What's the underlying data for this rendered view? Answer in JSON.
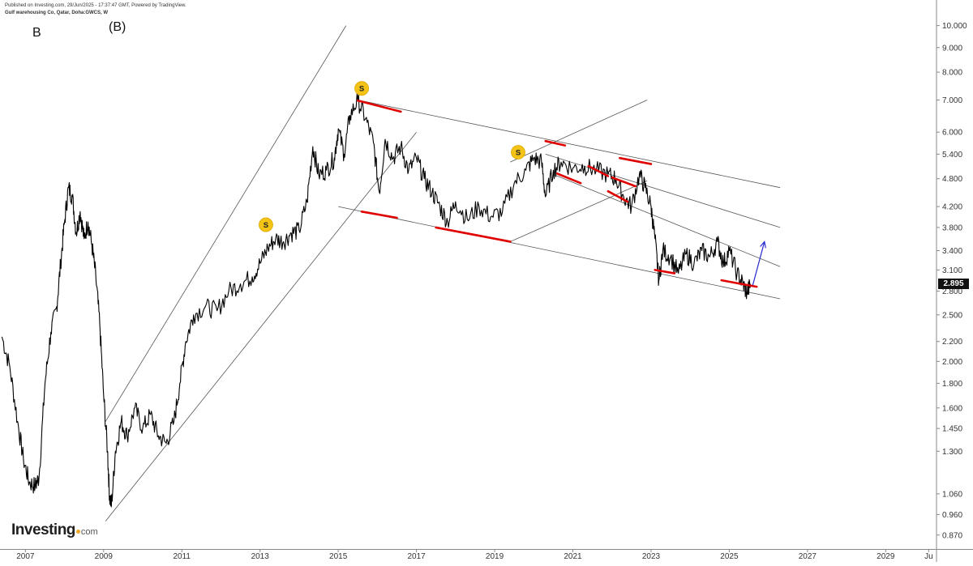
{
  "header": {
    "published": "Published on Investing.com, 29/Jun/2025 - 17:37:47 GMT, Powered by TradingView.",
    "symbol": "Gulf warehousing Co, Qatar, Doha:GWCS, W"
  },
  "labels": {
    "wave_b": "B",
    "wave_b_paren": "(B)"
  },
  "logo": {
    "main": "Investing",
    "suffix": "com"
  },
  "colors": {
    "price": "#000000",
    "trendline": "#555555",
    "touch_marker": "#e00000",
    "target_arrow": "#2a2ad0",
    "signal_badge": "#f3c316",
    "grid": "#ffffff"
  },
  "chart_data": {
    "type": "line",
    "title": "",
    "xlabel": "",
    "ylabel": "",
    "y_scale": "log",
    "ylim": [
      0.82,
      10.3
    ],
    "xlim": [
      2006.35,
      2030.3
    ],
    "y_ticks": [
      "10.000",
      "9.000",
      "8.000",
      "7.000",
      "6.000",
      "5.400",
      "4.800",
      "4.200",
      "3.800",
      "3.400",
      "3.100",
      "2.800",
      "2.500",
      "2.200",
      "2.000",
      "1.800",
      "1.600",
      "1.450",
      "1.300",
      "1.060",
      "0.960",
      "0.870"
    ],
    "x_ticks": [
      "2007",
      "2009",
      "2011",
      "2013",
      "2015",
      "2017",
      "2019",
      "2021",
      "2023",
      "2025",
      "2027",
      "2029",
      "Ju"
    ],
    "last_price": "2.895",
    "series": [
      {
        "points": [
          [
            2006.4,
            2.25
          ],
          [
            2006.6,
            1.95
          ],
          [
            2006.8,
            1.5
          ],
          [
            2006.95,
            1.25
          ],
          [
            2007.1,
            1.12
          ],
          [
            2007.25,
            1.1
          ],
          [
            2007.35,
            1.15
          ],
          [
            2007.5,
            1.8
          ],
          [
            2007.65,
            2.3
          ],
          [
            2007.8,
            2.6
          ],
          [
            2007.9,
            3.2
          ],
          [
            2008.0,
            3.9
          ],
          [
            2008.1,
            4.6
          ],
          [
            2008.2,
            4.4
          ],
          [
            2008.3,
            3.7
          ],
          [
            2008.4,
            4.1
          ],
          [
            2008.5,
            3.6
          ],
          [
            2008.6,
            3.9
          ],
          [
            2008.7,
            3.5
          ],
          [
            2008.8,
            3.0
          ],
          [
            2008.9,
            2.4
          ],
          [
            2009.0,
            1.7
          ],
          [
            2009.1,
            1.3
          ],
          [
            2009.15,
            1.05
          ],
          [
            2009.2,
            1.0
          ],
          [
            2009.3,
            1.3
          ],
          [
            2009.45,
            1.5
          ],
          [
            2009.6,
            1.4
          ],
          [
            2009.8,
            1.6
          ],
          [
            2010.0,
            1.45
          ],
          [
            2010.2,
            1.55
          ],
          [
            2010.4,
            1.4
          ],
          [
            2010.6,
            1.35
          ],
          [
            2010.8,
            1.5
          ],
          [
            2010.95,
            1.8
          ],
          [
            2011.1,
            2.2
          ],
          [
            2011.3,
            2.5
          ],
          [
            2011.6,
            2.6
          ],
          [
            2011.9,
            2.55
          ],
          [
            2012.2,
            2.8
          ],
          [
            2012.5,
            2.9
          ],
          [
            2012.8,
            3.0
          ],
          [
            2013.0,
            3.2
          ],
          [
            2013.2,
            3.45
          ],
          [
            2013.4,
            3.6
          ],
          [
            2013.6,
            3.55
          ],
          [
            2013.8,
            3.7
          ],
          [
            2014.0,
            3.75
          ],
          [
            2014.2,
            4.3
          ],
          [
            2014.35,
            5.6
          ],
          [
            2014.5,
            4.9
          ],
          [
            2014.7,
            5.0
          ],
          [
            2014.9,
            5.3
          ],
          [
            2015.0,
            6.1
          ],
          [
            2015.15,
            5.4
          ],
          [
            2015.3,
            6.5
          ],
          [
            2015.5,
            7.0
          ],
          [
            2015.7,
            6.4
          ],
          [
            2015.9,
            5.7
          ],
          [
            2016.05,
            4.5
          ],
          [
            2016.2,
            5.8
          ],
          [
            2016.4,
            5.3
          ],
          [
            2016.6,
            5.6
          ],
          [
            2016.8,
            5.0
          ],
          [
            2017.0,
            5.3
          ],
          [
            2017.2,
            4.8
          ],
          [
            2017.4,
            4.5
          ],
          [
            2017.6,
            4.2
          ],
          [
            2017.8,
            3.9
          ],
          [
            2018.0,
            4.3
          ],
          [
            2018.3,
            3.95
          ],
          [
            2018.6,
            4.2
          ],
          [
            2018.9,
            4.0
          ],
          [
            2019.2,
            4.1
          ],
          [
            2019.5,
            4.7
          ],
          [
            2019.8,
            5.0
          ],
          [
            2020.0,
            5.3
          ],
          [
            2020.2,
            5.2
          ],
          [
            2020.3,
            4.4
          ],
          [
            2020.5,
            5.0
          ],
          [
            2020.7,
            5.2
          ],
          [
            2021.0,
            5.05
          ],
          [
            2021.3,
            5.1
          ],
          [
            2021.6,
            5.0
          ],
          [
            2021.9,
            4.9
          ],
          [
            2022.1,
            4.8
          ],
          [
            2022.3,
            4.4
          ],
          [
            2022.5,
            4.2
          ],
          [
            2022.7,
            4.9
          ],
          [
            2022.85,
            4.6
          ],
          [
            2023.0,
            4.2
          ],
          [
            2023.1,
            3.6
          ],
          [
            2023.2,
            2.95
          ],
          [
            2023.3,
            3.4
          ],
          [
            2023.5,
            3.3
          ],
          [
            2023.7,
            3.05
          ],
          [
            2023.9,
            3.35
          ],
          [
            2024.1,
            3.2
          ],
          [
            2024.3,
            3.4
          ],
          [
            2024.5,
            3.3
          ],
          [
            2024.7,
            3.55
          ],
          [
            2024.85,
            3.2
          ],
          [
            2025.0,
            3.4
          ],
          [
            2025.2,
            3.05
          ],
          [
            2025.35,
            2.9
          ],
          [
            2025.45,
            2.78
          ],
          [
            2025.55,
            2.895
          ]
        ]
      }
    ],
    "trendlines": [
      {
        "name": "channel-upper",
        "from": [
          2009.05,
          1.5
        ],
        "to": [
          2015.2,
          10.0
        ]
      },
      {
        "name": "channel-lower",
        "from": [
          2009.05,
          0.93
        ],
        "to": [
          2017.0,
          6.0
        ]
      },
      {
        "name": "falling-channel-top",
        "from": [
          2015.5,
          7.0
        ],
        "to": [
          2026.3,
          4.6
        ]
      },
      {
        "name": "falling-channel-bottom",
        "from": [
          2015.0,
          4.2
        ],
        "to": [
          2026.3,
          2.7
        ]
      },
      {
        "name": "inner-falling-upper",
        "from": [
          2020.3,
          5.4
        ],
        "to": [
          2026.3,
          3.8
        ]
      },
      {
        "name": "inner-falling-lower",
        "from": [
          2020.5,
          4.9
        ],
        "to": [
          2026.3,
          3.15
        ]
      },
      {
        "name": "rising-channel-top",
        "from": [
          2019.4,
          5.2
        ],
        "to": [
          2022.9,
          7.0
        ]
      },
      {
        "name": "rising-channel-bottom",
        "from": [
          2019.4,
          3.55
        ],
        "to": [
          2022.9,
          4.75
        ]
      }
    ],
    "touch_markers": [
      {
        "from": [
          2015.5,
          6.98
        ],
        "to": [
          2016.6,
          6.62
        ]
      },
      {
        "from": [
          2020.3,
          5.75
        ],
        "to": [
          2020.8,
          5.63
        ]
      },
      {
        "from": [
          2022.2,
          5.3
        ],
        "to": [
          2023.0,
          5.15
        ]
      },
      {
        "from": [
          2021.4,
          5.1
        ],
        "to": [
          2021.9,
          4.86
        ]
      },
      {
        "from": [
          2022.0,
          4.83
        ],
        "to": [
          2022.6,
          4.63
        ]
      },
      {
        "from": [
          2020.6,
          4.92
        ],
        "to": [
          2021.2,
          4.7
        ]
      },
      {
        "from": [
          2021.9,
          4.52
        ],
        "to": [
          2022.4,
          4.3
        ]
      },
      {
        "from": [
          2015.6,
          4.1
        ],
        "to": [
          2016.5,
          3.98
        ]
      },
      {
        "from": [
          2017.5,
          3.8
        ],
        "to": [
          2019.4,
          3.55
        ]
      },
      {
        "from": [
          2023.1,
          3.1
        ],
        "to": [
          2023.6,
          3.05
        ]
      },
      {
        "from": [
          2024.8,
          2.95
        ],
        "to": [
          2025.7,
          2.86
        ]
      }
    ],
    "target_arrow": {
      "from": [
        2025.6,
        2.88
      ],
      "to": [
        2025.9,
        3.55
      ]
    },
    "signal_points": [
      {
        "x": 2013.15,
        "y": 3.85,
        "label": "S"
      },
      {
        "x": 2015.6,
        "y": 7.4,
        "label": "S"
      },
      {
        "x": 2019.6,
        "y": 5.45,
        "label": "S"
      }
    ]
  }
}
